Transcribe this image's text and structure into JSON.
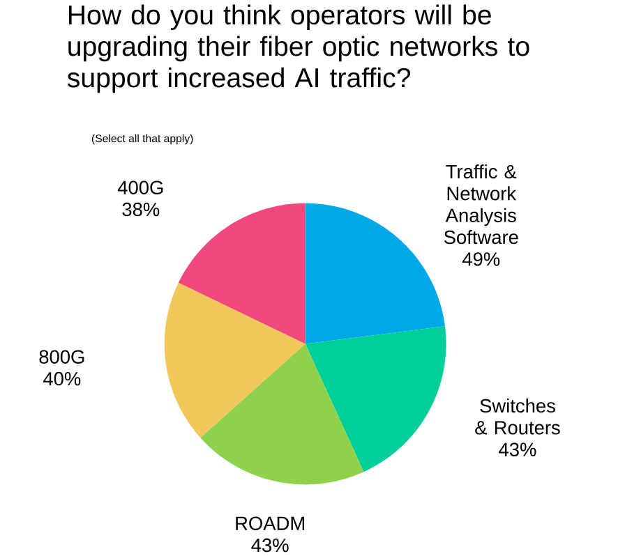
{
  "chart_data": {
    "type": "pie",
    "title": "How do you think operators will be upgrading their fiber optic networks to support increased AI traffic?",
    "subtitle": "(Select all that apply)",
    "categories": [
      "Traffic & Network Analysis Software",
      "Switches & Routers",
      "ROADM",
      "800G",
      "400G"
    ],
    "values": [
      49,
      43,
      43,
      40,
      38
    ],
    "value_labels": [
      "49%",
      "43%",
      "43%",
      "40%",
      "38%"
    ],
    "colors": [
      "#00a8e8",
      "#00cf9a",
      "#8fd14a",
      "#f2c75a",
      "#f2497c"
    ],
    "legend": false
  }
}
